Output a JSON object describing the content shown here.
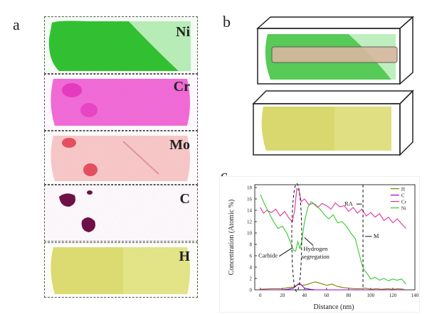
{
  "panels": {
    "a": "a",
    "b": "b",
    "c": "c"
  },
  "elements": [
    {
      "label": "Ni",
      "color": "#22bb22"
    },
    {
      "label": "Cr",
      "color": "#ee33cc"
    },
    {
      "label": "Mo",
      "color": "#ee8888"
    },
    {
      "label": "C",
      "color": "#771144"
    },
    {
      "label": "H",
      "color": "#cccc44"
    }
  ],
  "chart_data": {
    "type": "line",
    "xlabel": "Distance (nm)",
    "ylabel": "Concentration (Atomic %)",
    "xlim": [
      -5,
      140
    ],
    "ylim": [
      0,
      18.5
    ],
    "xticks": [
      0,
      20,
      40,
      60,
      80,
      100,
      120,
      140
    ],
    "yticks": [
      0,
      2,
      4,
      6,
      8,
      10,
      12,
      14,
      16,
      18
    ],
    "legend_position": "top-right",
    "series": [
      {
        "name": "H",
        "color": "#808000",
        "x": [
          0,
          10,
          20,
          25,
          30,
          33,
          35,
          38,
          42,
          46,
          50,
          55,
          60,
          65,
          70,
          75,
          80,
          85,
          90,
          95,
          100,
          105,
          110,
          115,
          120,
          125,
          130
        ],
        "y": [
          0.1,
          0.2,
          0.2,
          0.4,
          0.5,
          0.8,
          1.0,
          0.8,
          0.9,
          1.2,
          1.4,
          1.1,
          0.8,
          1.0,
          0.6,
          0.4,
          0.3,
          0.2,
          0.2,
          0.3,
          0.1,
          0.2,
          0.1,
          0.2,
          0.1,
          0.2,
          0.1
        ]
      },
      {
        "name": "C",
        "color": "#9900cc",
        "x": [
          0,
          10,
          20,
          25,
          30,
          32,
          34,
          36,
          38,
          40,
          45,
          50,
          60,
          70,
          80,
          90,
          100,
          110,
          120,
          130
        ],
        "y": [
          0.0,
          0.0,
          0.0,
          0.1,
          0.3,
          0.6,
          1.0,
          1.1,
          0.7,
          0.3,
          0.1,
          0.0,
          0.0,
          0.0,
          0.0,
          0.0,
          0.0,
          0.0,
          0.0,
          0.0
        ]
      },
      {
        "name": "Cr",
        "color": "#e0309a",
        "x": [
          0,
          3,
          6,
          10,
          14,
          18,
          22,
          26,
          29,
          31,
          33,
          35,
          37,
          40,
          44,
          48,
          52,
          56,
          60,
          64,
          68,
          72,
          76,
          80,
          84,
          88,
          92,
          96,
          100,
          104,
          108,
          112,
          116,
          120,
          124,
          128,
          132
        ],
        "y": [
          14.5,
          13.5,
          14.0,
          13.6,
          14.2,
          13.0,
          13.8,
          12.6,
          12.0,
          13.8,
          17.8,
          17.5,
          15.5,
          16.0,
          15.0,
          15.2,
          14.5,
          15.2,
          14.8,
          14.2,
          15.3,
          14.6,
          14.8,
          13.8,
          14.5,
          13.5,
          14.2,
          13.0,
          13.6,
          12.8,
          13.4,
          12.2,
          12.8,
          11.8,
          12.5,
          11.6,
          10.8
        ]
      },
      {
        "name": "Ni",
        "color": "#33cc33",
        "x": [
          0,
          4,
          8,
          12,
          16,
          20,
          24,
          27,
          30,
          32,
          34,
          36,
          38,
          40,
          43,
          46,
          50,
          54,
          58,
          62,
          66,
          70,
          74,
          78,
          82,
          86,
          90,
          92,
          94,
          97,
          100,
          104,
          108,
          112,
          116,
          120,
          124,
          128,
          132
        ],
        "y": [
          16.8,
          15.0,
          13.5,
          12.0,
          10.8,
          11.2,
          10.0,
          8.5,
          7.0,
          6.8,
          8.5,
          7.2,
          9.0,
          12.0,
          14.5,
          15.5,
          15.0,
          14.2,
          13.2,
          12.5,
          13.2,
          11.8,
          12.0,
          11.2,
          10.0,
          9.0,
          6.0,
          4.5,
          3.5,
          2.8,
          1.9,
          2.2,
          1.7,
          2.0,
          1.6,
          1.9,
          1.7,
          1.9,
          1.0
        ]
      }
    ],
    "annotations": [
      {
        "text": "Carbide",
        "x": 7,
        "y": 5.7
      },
      {
        "text": "Hydrogen",
        "x": 50,
        "y": 6.9
      },
      {
        "text": "segregation",
        "x": 50,
        "y": 5.5
      },
      {
        "text": "RA",
        "x": 80,
        "y": 14.8
      },
      {
        "text": "M",
        "x": 105,
        "y": 9.1
      }
    ]
  }
}
